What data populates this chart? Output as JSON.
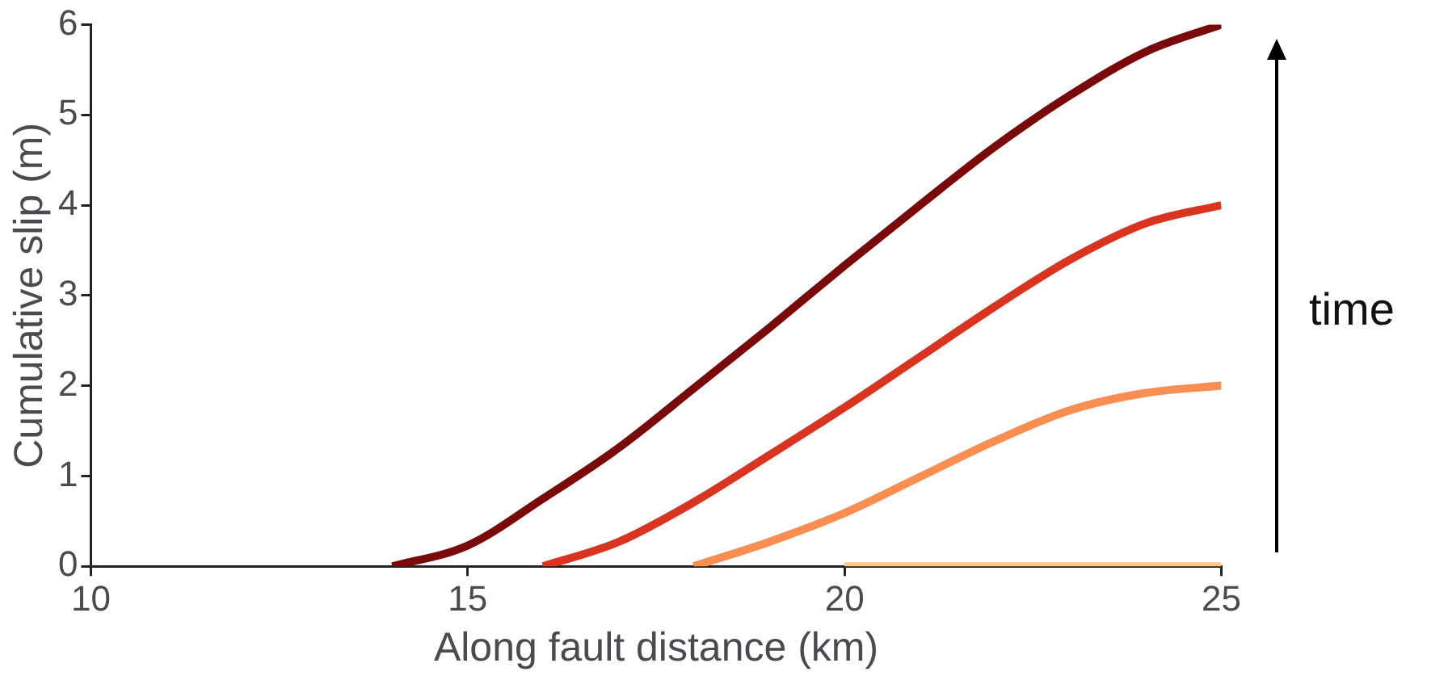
{
  "chart_data": {
    "type": "line",
    "xlabel": "Along fault distance (km)",
    "ylabel": "Cumulative slip (m)",
    "annotations": [
      "time"
    ],
    "xlim": [
      10,
      25
    ],
    "xticks": [
      10,
      15,
      20,
      25
    ],
    "ylim": [
      0,
      6
    ],
    "yticks": [
      0,
      1,
      2,
      3,
      4,
      5,
      6
    ],
    "grid": false,
    "legend": false,
    "marker": "none",
    "line_style": "solid",
    "series": [
      {
        "color": "#7a0a0a",
        "x": [
          14,
          15,
          16,
          17,
          18,
          19,
          20,
          21,
          22,
          23,
          24,
          25
        ],
        "values": [
          0,
          0.23,
          0.75,
          1.31,
          1.97,
          2.64,
          3.33,
          4.0,
          4.65,
          5.22,
          5.7,
          6
        ]
      },
      {
        "color": "#d93420",
        "x": [
          16,
          17,
          18,
          19,
          20,
          21,
          22,
          23,
          24,
          25
        ],
        "values": [
          0,
          0.27,
          0.71,
          1.23,
          1.76,
          2.32,
          2.88,
          3.4,
          3.8,
          4
        ]
      },
      {
        "color": "#f98e52",
        "x": [
          18,
          19,
          20,
          21,
          22,
          23,
          24,
          25
        ],
        "values": [
          0,
          0.27,
          0.59,
          0.99,
          1.39,
          1.73,
          1.92,
          2
        ]
      },
      {
        "color": "#fdca8e",
        "x": [
          20,
          25
        ],
        "values": [
          0,
          0
        ]
      }
    ]
  }
}
